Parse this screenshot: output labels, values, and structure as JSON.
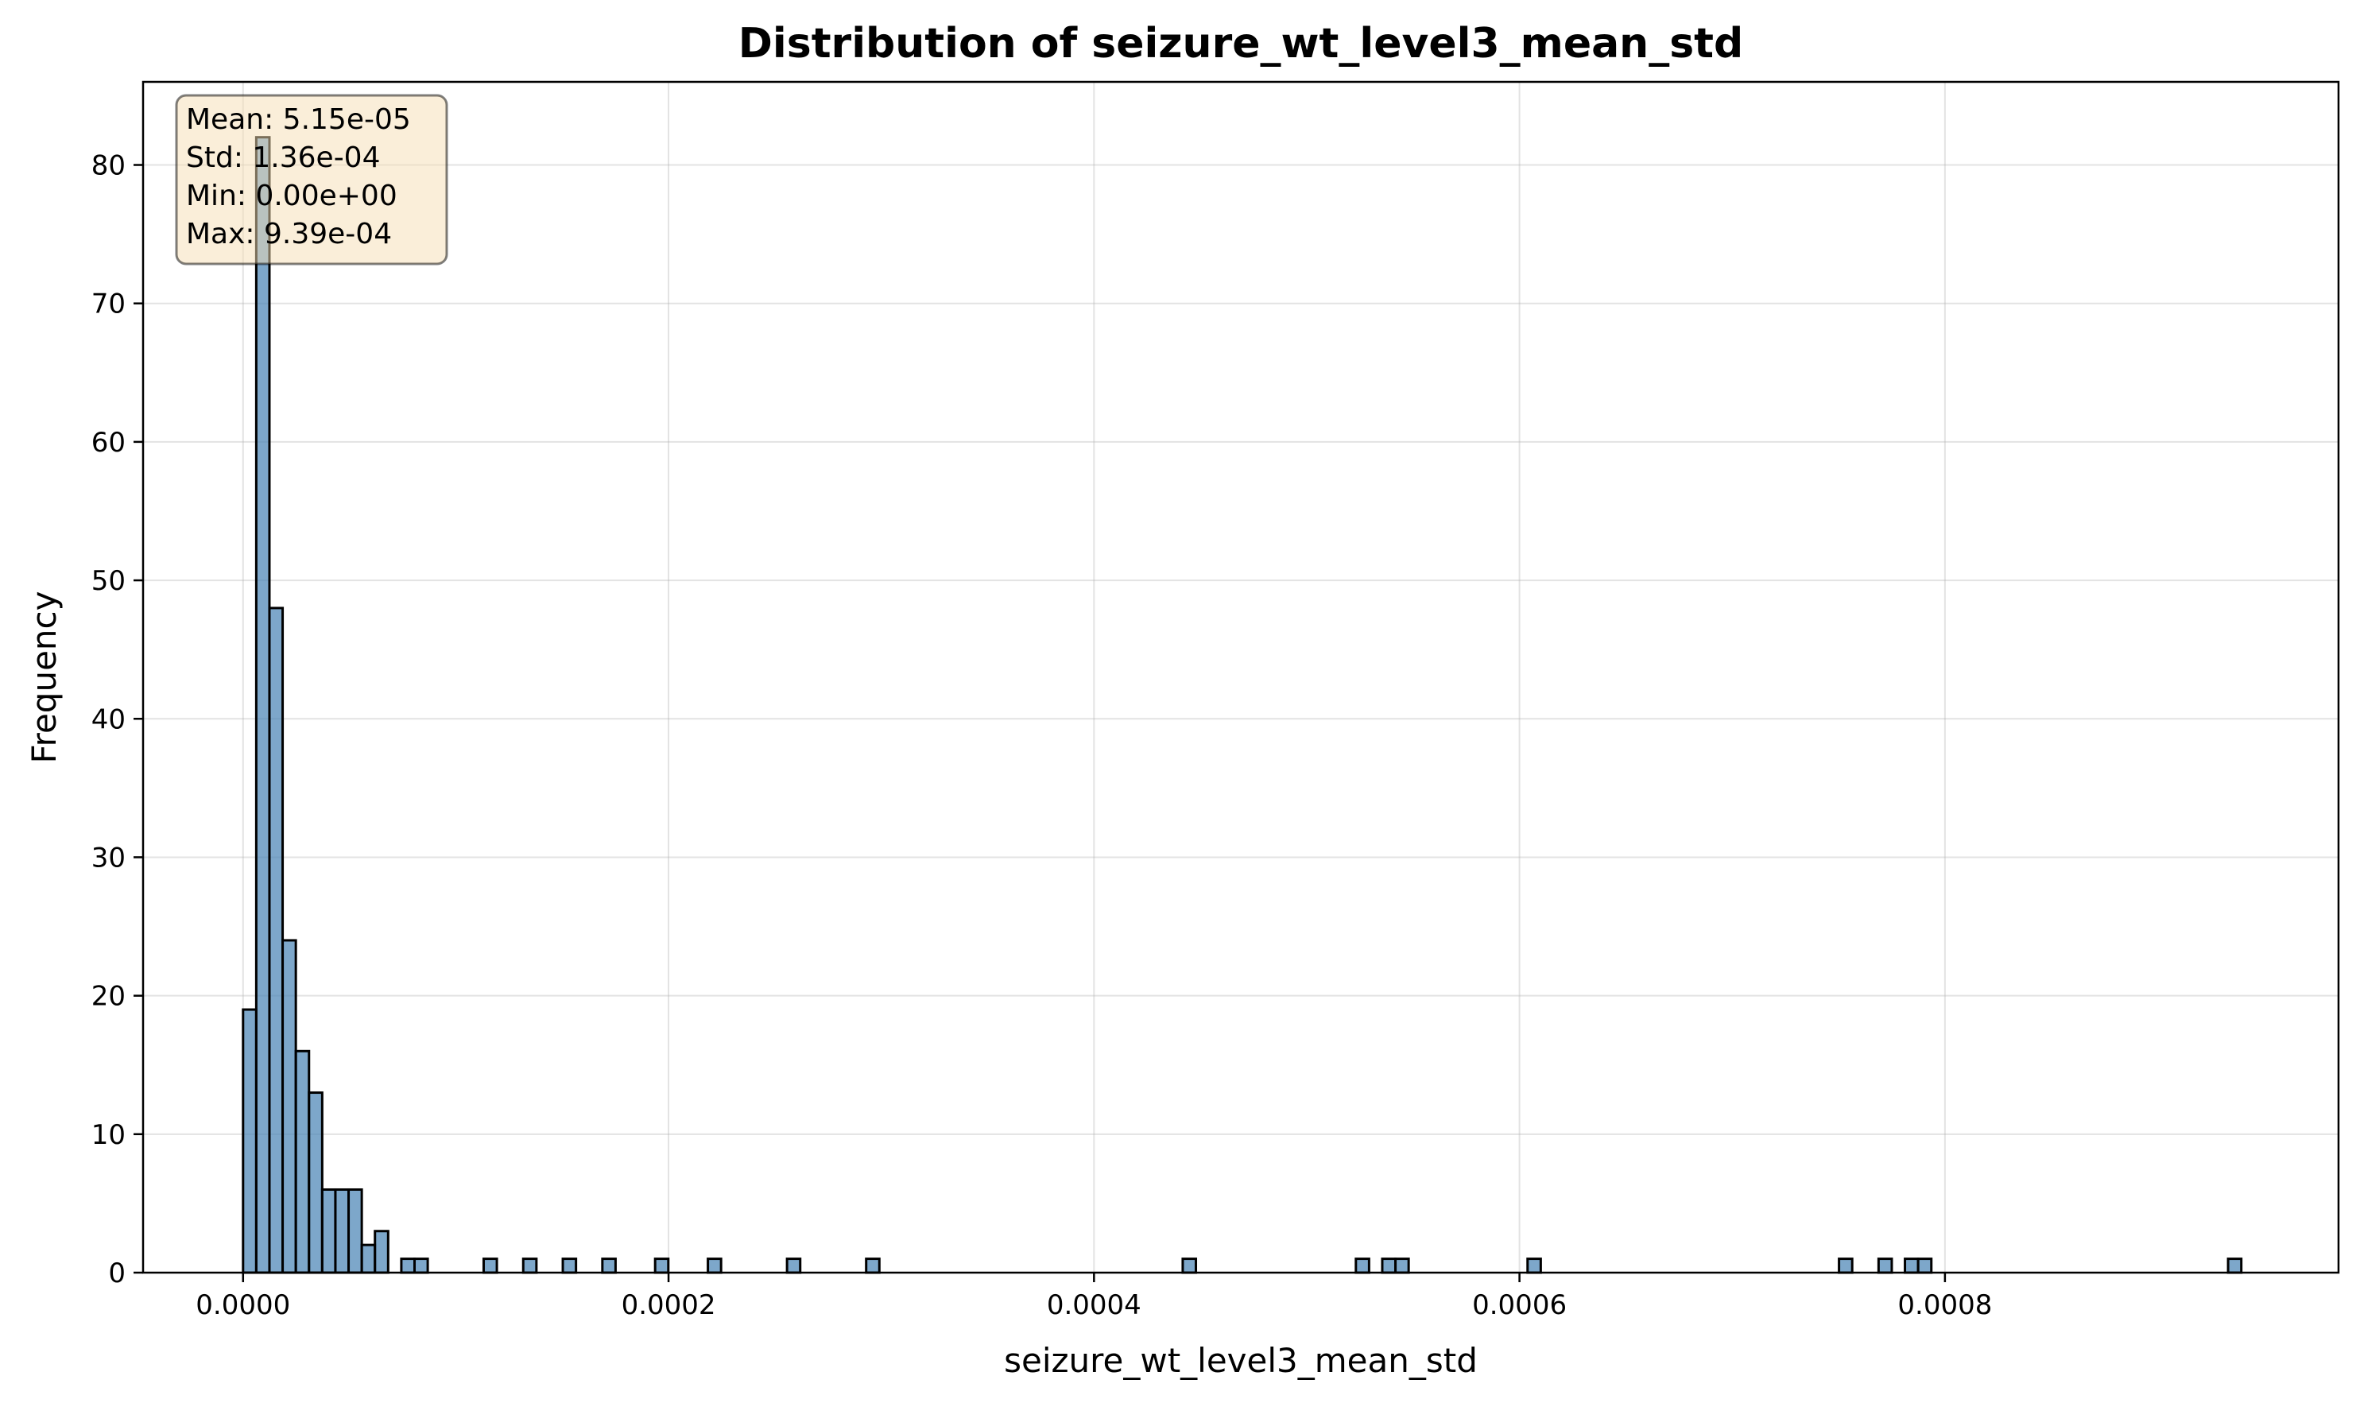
{
  "chart_data": {
    "type": "bar",
    "title": "Distribution of seizure_wt_level3_mean_std",
    "xlabel": "seizure_wt_level3_mean_std",
    "ylabel": "Frequency",
    "xlim": [
      -4.7e-05,
      0.000985
    ],
    "ylim": [
      0,
      86
    ],
    "xticks": [
      0.0,
      0.0002,
      0.0004,
      0.0006,
      0.0008
    ],
    "xtick_labels": [
      "0.0000",
      "0.0002",
      "0.0004",
      "0.0006",
      "0.0008"
    ],
    "yticks": [
      0,
      10,
      20,
      30,
      40,
      50,
      60,
      70,
      80
    ],
    "ytick_labels": [
      "0",
      "10",
      "20",
      "30",
      "40",
      "50",
      "60",
      "70",
      "80"
    ],
    "grid": true,
    "bin_width": 6.2e-06,
    "bins": [
      {
        "x": 3.1e-06,
        "count": 19
      },
      {
        "x": 9.3e-06,
        "count": 82
      },
      {
        "x": 1.55e-05,
        "count": 48
      },
      {
        "x": 2.17e-05,
        "count": 24
      },
      {
        "x": 2.79e-05,
        "count": 16
      },
      {
        "x": 3.41e-05,
        "count": 13
      },
      {
        "x": 4.03e-05,
        "count": 6
      },
      {
        "x": 4.65e-05,
        "count": 6
      },
      {
        "x": 5.27e-05,
        "count": 6
      },
      {
        "x": 5.89e-05,
        "count": 2
      },
      {
        "x": 6.51e-05,
        "count": 3
      },
      {
        "x": 7.75e-05,
        "count": 1
      },
      {
        "x": 8.37e-05,
        "count": 1
      },
      {
        "x": 0.0001162,
        "count": 1
      },
      {
        "x": 0.0001348,
        "count": 1
      },
      {
        "x": 0.0001534,
        "count": 1
      },
      {
        "x": 0.000172,
        "count": 1
      },
      {
        "x": 0.0001968,
        "count": 1
      },
      {
        "x": 0.0002216,
        "count": 1
      },
      {
        "x": 0.0002588,
        "count": 1
      },
      {
        "x": 0.000296,
        "count": 1
      },
      {
        "x": 0.0004448,
        "count": 1
      },
      {
        "x": 0.0005262,
        "count": 1
      },
      {
        "x": 0.0005386,
        "count": 1
      },
      {
        "x": 0.0005448,
        "count": 1
      },
      {
        "x": 0.0006069,
        "count": 1
      },
      {
        "x": 0.0007533,
        "count": 1
      },
      {
        "x": 0.0007719,
        "count": 1
      },
      {
        "x": 0.0007843,
        "count": 1
      },
      {
        "x": 0.0007905,
        "count": 1
      },
      {
        "x": 0.0009362,
        "count": 1
      }
    ],
    "annotation": {
      "lines": [
        "Mean: 5.15e-05",
        "Std: 1.36e-04",
        "Min: 0.00e+00",
        "Max: 9.39e-04"
      ],
      "placement": "top-left",
      "background": "#f5deb3",
      "border": "#000000"
    },
    "colors": {
      "bar_fill": "#4682b4",
      "bar_edge": "#000000"
    }
  }
}
